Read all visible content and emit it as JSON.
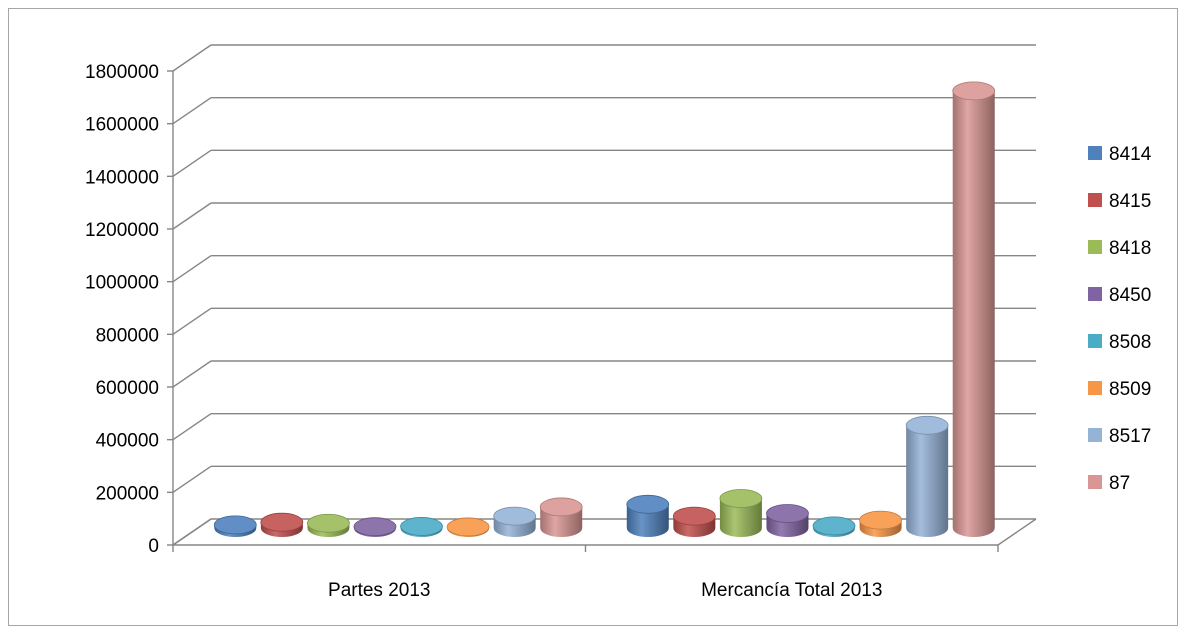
{
  "chart_data": {
    "type": "bar",
    "three_d": true,
    "categories": [
      "Partes 2013",
      "Mercancía Total 2013"
    ],
    "series": [
      {
        "name": "8414",
        "color": "#4f81bd",
        "values": [
          12000,
          90000
        ]
      },
      {
        "name": "8415",
        "color": "#c0504d",
        "values": [
          22000,
          45000
        ]
      },
      {
        "name": "8418",
        "color": "#9bbb59",
        "values": [
          18000,
          112000
        ]
      },
      {
        "name": "8450",
        "color": "#8064a2",
        "values": [
          5000,
          55000
        ]
      },
      {
        "name": "8508",
        "color": "#4bacc6",
        "values": [
          6000,
          8000
        ]
      },
      {
        "name": "8509",
        "color": "#f79646",
        "values": [
          4000,
          30000
        ]
      },
      {
        "name": "8517",
        "color": "#95b3d7",
        "values": [
          45000,
          390000
        ]
      },
      {
        "name": "87",
        "color": "#d99694",
        "values": [
          80000,
          1660000
        ]
      }
    ],
    "yticks": [
      "0",
      "200000",
      "400000",
      "600000",
      "800000",
      "1000000",
      "1200000",
      "1400000",
      "1600000",
      "1800000"
    ],
    "ylim": [
      0,
      1800000
    ],
    "grid": true,
    "legend": "right"
  }
}
